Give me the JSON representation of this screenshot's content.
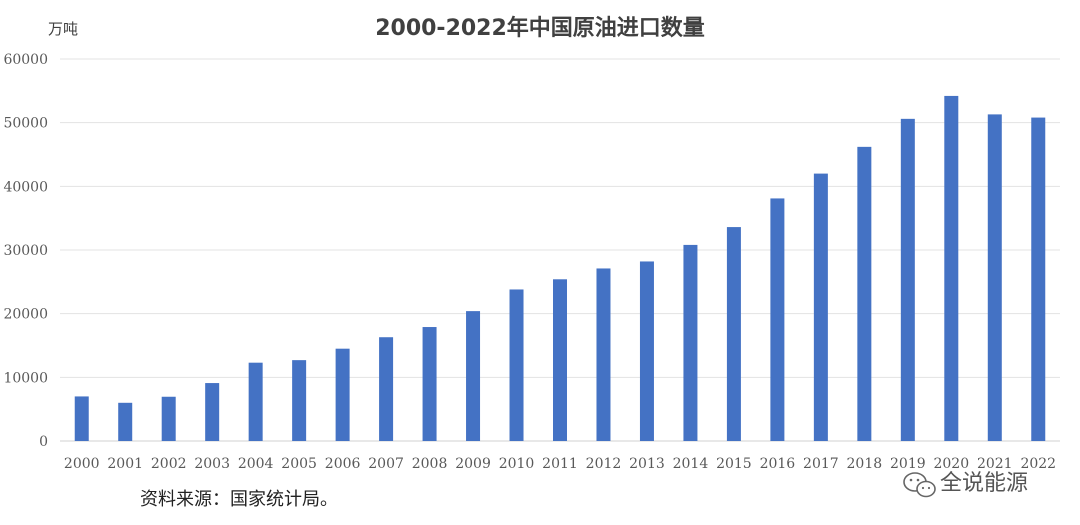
{
  "chart_data": {
    "type": "bar",
    "title": "2000-2022年中国原油进口数量",
    "ylabel": "万吨",
    "xlabel": "",
    "ylim": [
      0,
      60000
    ],
    "yticks": [
      0,
      10000,
      20000,
      30000,
      40000,
      50000,
      60000
    ],
    "grid": true,
    "categories": [
      "2000",
      "2001",
      "2002",
      "2003",
      "2004",
      "2005",
      "2006",
      "2007",
      "2008",
      "2009",
      "2010",
      "2011",
      "2012",
      "2013",
      "2014",
      "2015",
      "2016",
      "2017",
      "2018",
      "2019",
      "2020",
      "2021",
      "2022"
    ],
    "values": [
      7000,
      6000,
      6950,
      9100,
      12300,
      12700,
      14500,
      16300,
      17900,
      20400,
      23800,
      25400,
      27100,
      28200,
      30800,
      33600,
      38100,
      42000,
      46200,
      50600,
      54200,
      51300,
      50800
    ],
    "bar_color": "#4472C4",
    "legend": "none"
  },
  "source_note": "资料来源：国家统计局。",
  "watermark": {
    "text": "全说能源",
    "icon": "wechat-icon"
  }
}
